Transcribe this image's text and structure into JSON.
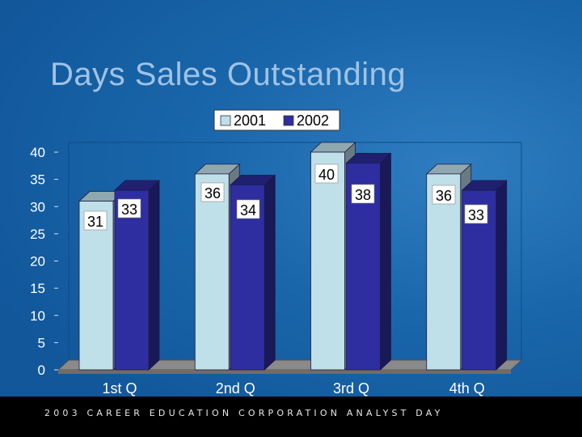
{
  "slide": {
    "title": "Days Sales Outstanding",
    "footer": "2003 CAREER EDUCATION CORPORATION ANALYST DAY"
  },
  "chart_data": {
    "type": "bar",
    "categories": [
      "1st Q",
      "2nd Q",
      "3rd Q",
      "4th Q"
    ],
    "series": [
      {
        "name": "2001",
        "values": [
          31,
          36,
          40,
          36
        ],
        "color": "#bfe0e8"
      },
      {
        "name": "2002",
        "values": [
          33,
          34,
          38,
          33
        ],
        "color": "#2e2ea0"
      }
    ],
    "ylim": [
      0,
      40
    ],
    "yticks": [
      0,
      5,
      10,
      15,
      20,
      25,
      30,
      35,
      40
    ],
    "legend": "top-center",
    "grid": false,
    "data_labels": true
  }
}
